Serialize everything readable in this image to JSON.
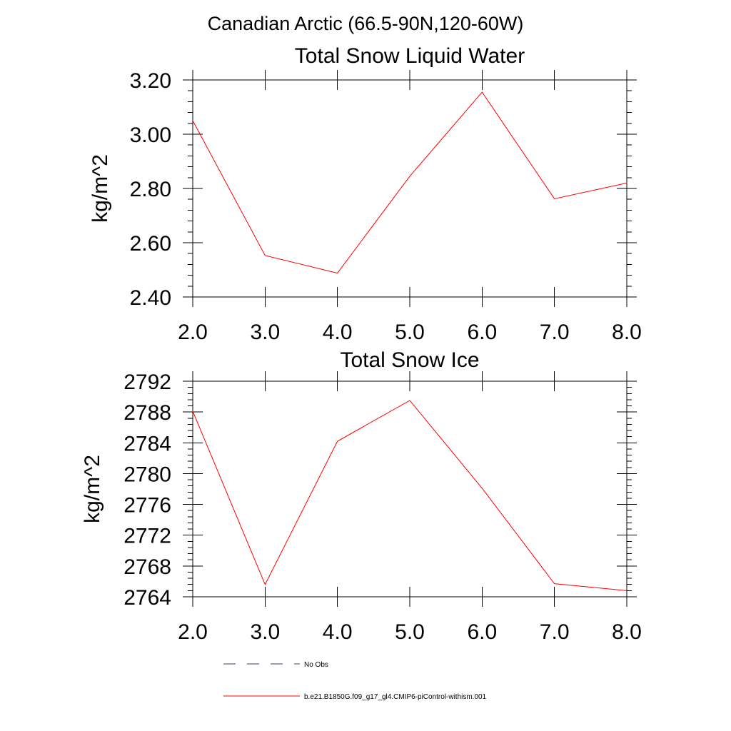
{
  "figure": {
    "title": "Canadian Arctic (66.5-90N,120-60W)"
  },
  "chart_data": [
    {
      "type": "line",
      "title": "Total Snow Liquid Water",
      "ylabel": "kg/m^2",
      "xlabel": "",
      "xlim": [
        2.0,
        8.0
      ],
      "ylim": [
        2.4,
        3.2
      ],
      "x": [
        2.0,
        3.0,
        4.0,
        5.0,
        6.0,
        7.0,
        8.0
      ],
      "x_tick_labels": [
        "2.0",
        "3.0",
        "4.0",
        "5.0",
        "6.0",
        "7.0",
        "8.0"
      ],
      "y_ticks": [
        2.4,
        2.6,
        2.8,
        3.0,
        3.2
      ],
      "y_tick_labels": [
        "2.40",
        "2.60",
        "2.80",
        "3.00",
        "3.20"
      ],
      "grid": false,
      "series": [
        {
          "name": "b.e21.B1850G.f09_g17_gl4.CMIP6-piControl-withism.001",
          "color": "#ff0000",
          "values": [
            3.05,
            2.553,
            2.488,
            2.845,
            3.155,
            2.762,
            2.82
          ]
        }
      ]
    },
    {
      "type": "line",
      "title": "Total Snow Ice",
      "ylabel": "kg/m^2",
      "xlabel": "",
      "xlim": [
        2.0,
        8.0
      ],
      "ylim": [
        2764,
        2792
      ],
      "x": [
        2.0,
        3.0,
        4.0,
        5.0,
        6.0,
        7.0,
        8.0
      ],
      "x_tick_labels": [
        "2.0",
        "3.0",
        "4.0",
        "5.0",
        "6.0",
        "7.0",
        "8.0"
      ],
      "y_ticks": [
        2764,
        2768,
        2772,
        2776,
        2780,
        2784,
        2788,
        2792
      ],
      "y_tick_labels": [
        "2764",
        "2768",
        "2772",
        "2776",
        "2780",
        "2784",
        "2788",
        "2792"
      ],
      "grid": false,
      "series": [
        {
          "name": "b.e21.B1850G.f09_g17_gl4.CMIP6-piControl-withism.001",
          "color": "#ff0000",
          "values": [
            2788.1,
            2765.6,
            2784.2,
            2789.5,
            2778.1,
            2765.7,
            2764.8
          ]
        }
      ]
    }
  ],
  "legend": {
    "placement": "bottom",
    "entries": [
      {
        "label": "No Obs",
        "style": "dashed",
        "color": "#3b3b6b"
      },
      {
        "label": "b.e21.B1850G.f09_g17_gl4.CMIP6-piControl-withism.001",
        "style": "solid",
        "color": "#ff0000"
      }
    ]
  }
}
